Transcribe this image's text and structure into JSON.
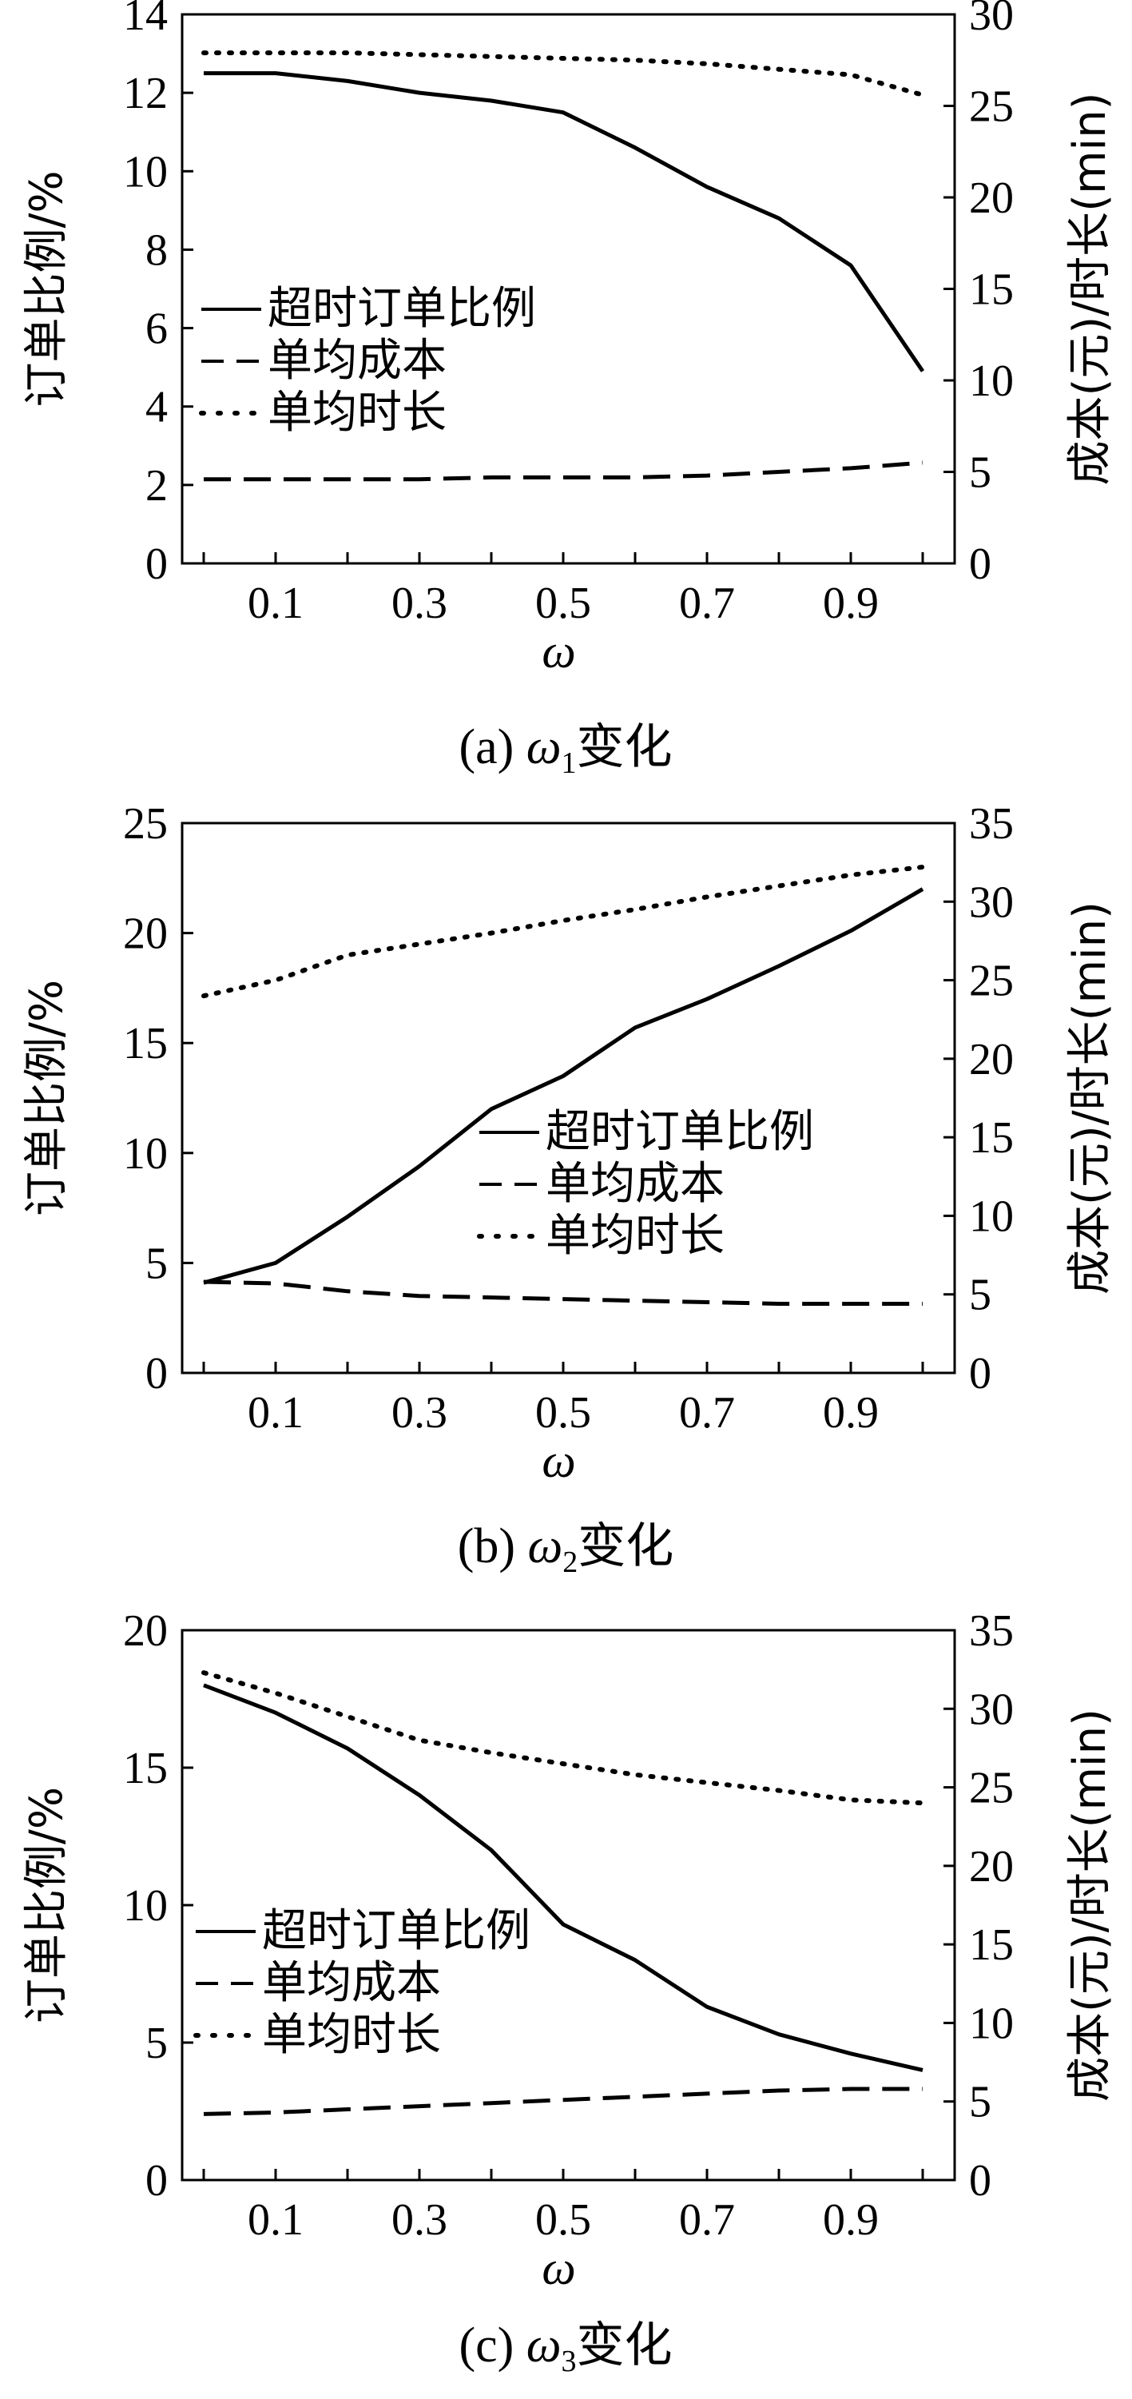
{
  "chart_data": [
    {
      "type": "line",
      "caption_prefix": "(a) ",
      "caption_symbol": "ω",
      "caption_sub": "1",
      "caption_suffix": "变化",
      "xlabel": "ω",
      "ylabel_left": "订单比例/%",
      "ylabel_right": "成本(元)/时长(min)",
      "ylim_left": [
        0,
        14
      ],
      "ylim_right": [
        0,
        30
      ],
      "yticks_left": [
        "0",
        "2",
        "4",
        "6",
        "8",
        "10",
        "12",
        "14"
      ],
      "yticks_right": [
        "0",
        "5",
        "10",
        "15",
        "20",
        "25",
        "30"
      ],
      "xticks": [
        "0.1",
        "0.3",
        "0.5",
        "0.7",
        "0.9"
      ],
      "x": [
        0,
        0.1,
        0.2,
        0.3,
        0.4,
        0.5,
        0.6,
        0.7,
        0.8,
        0.9,
        1.0
      ],
      "series": [
        {
          "name": "超时订单比例",
          "axis": "left",
          "style": "solid",
          "values": [
            12.5,
            12.5,
            12.3,
            12.0,
            11.8,
            11.5,
            10.6,
            9.6,
            8.8,
            7.6,
            4.9
          ]
        },
        {
          "name": "单均成本",
          "axis": "right",
          "style": "dashed",
          "values": [
            4.6,
            4.6,
            4.6,
            4.6,
            4.7,
            4.7,
            4.7,
            4.8,
            5.0,
            5.2,
            5.5
          ]
        },
        {
          "name": "单均时长",
          "axis": "right",
          "style": "dotted",
          "values": [
            27.9,
            27.9,
            27.9,
            27.8,
            27.7,
            27.6,
            27.5,
            27.3,
            27.0,
            26.7,
            25.6
          ]
        }
      ],
      "legend": "left"
    },
    {
      "type": "line",
      "caption_prefix": "(b) ",
      "caption_symbol": "ω",
      "caption_sub": "2",
      "caption_suffix": "变化",
      "xlabel": "ω",
      "ylabel_left": "订单比例/%",
      "ylabel_right": "成本(元)/时长(min)",
      "ylim_left": [
        0,
        25
      ],
      "ylim_right": [
        0,
        35
      ],
      "yticks_left": [
        "0",
        "5",
        "10",
        "15",
        "20",
        "25"
      ],
      "yticks_right": [
        "0",
        "5",
        "10",
        "15",
        "20",
        "25",
        "30",
        "35"
      ],
      "xticks": [
        "0.1",
        "0.3",
        "0.5",
        "0.7",
        "0.9"
      ],
      "x": [
        0,
        0.1,
        0.2,
        0.3,
        0.4,
        0.5,
        0.6,
        0.7,
        0.8,
        0.9,
        1.0
      ],
      "series": [
        {
          "name": "超时订单比例",
          "axis": "left",
          "style": "solid",
          "values": [
            4.1,
            5.0,
            7.1,
            9.4,
            12.0,
            13.5,
            15.7,
            17.0,
            18.5,
            20.1,
            22.0
          ]
        },
        {
          "name": "单均成本",
          "axis": "right",
          "style": "dashed",
          "values": [
            5.8,
            5.7,
            5.2,
            4.9,
            4.8,
            4.7,
            4.6,
            4.5,
            4.4,
            4.4,
            4.4
          ]
        },
        {
          "name": "单均时长",
          "axis": "right",
          "style": "dotted",
          "values": [
            24.0,
            25.0,
            26.6,
            27.3,
            28.0,
            28.8,
            29.5,
            30.3,
            31.0,
            31.7,
            32.2
          ]
        }
      ],
      "legend": "center-right"
    },
    {
      "type": "line",
      "caption_prefix": "(c) ",
      "caption_symbol": "ω",
      "caption_sub": "3",
      "caption_suffix": "变化",
      "xlabel": "ω",
      "ylabel_left": "订单比例/%",
      "ylabel_right": "成本(元)/时长(min)",
      "ylim_left": [
        0,
        20
      ],
      "ylim_right": [
        0,
        35
      ],
      "yticks_left": [
        "0",
        "5",
        "10",
        "15",
        "20"
      ],
      "yticks_right": [
        "0",
        "5",
        "10",
        "15",
        "20",
        "25",
        "30",
        "35"
      ],
      "xticks": [
        "0.1",
        "0.3",
        "0.5",
        "0.7",
        "0.9"
      ],
      "x": [
        0,
        0.1,
        0.2,
        0.3,
        0.4,
        0.5,
        0.6,
        0.7,
        0.8,
        0.9,
        1.0
      ],
      "series": [
        {
          "name": "超时订单比例",
          "axis": "left",
          "style": "solid",
          "values": [
            18.0,
            17.0,
            15.7,
            14.0,
            12.0,
            9.3,
            8.0,
            6.3,
            5.3,
            4.6,
            4.0
          ]
        },
        {
          "name": "单均成本",
          "axis": "right",
          "style": "dashed",
          "values": [
            4.2,
            4.3,
            4.5,
            4.7,
            4.9,
            5.1,
            5.3,
            5.5,
            5.7,
            5.8,
            5.8
          ]
        },
        {
          "name": "单均时长",
          "axis": "right",
          "style": "dotted",
          "values": [
            32.3,
            31.0,
            29.5,
            28.0,
            27.2,
            26.5,
            25.8,
            25.3,
            24.8,
            24.2,
            24.0
          ]
        }
      ],
      "legend": "left"
    }
  ]
}
